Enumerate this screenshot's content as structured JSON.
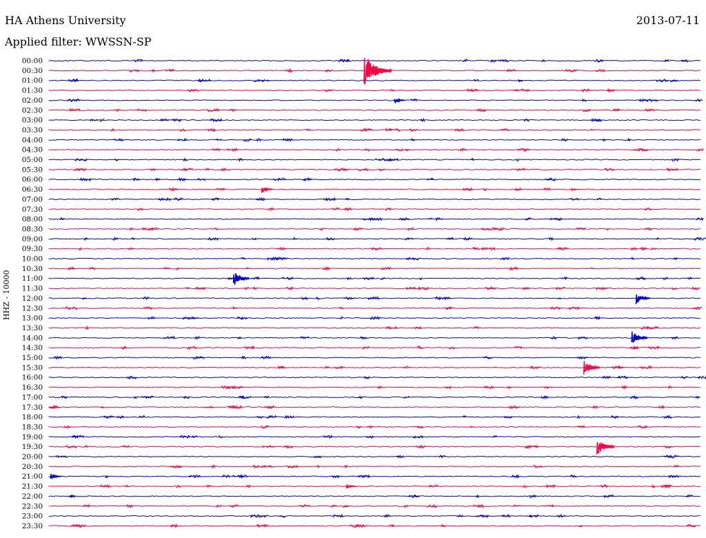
{
  "header": {
    "title": "HA Athens University",
    "filter": "Applied filter: WWSSN-SP",
    "date": "2013-07-11"
  },
  "colors": {
    "even_row": "#0000cc",
    "odd_row": "#ff0044"
  },
  "chart_data": {
    "type": "line",
    "ylabel": "HHZ - 10000",
    "rows": [
      "00:00",
      "00:30",
      "01:00",
      "01:30",
      "02:00",
      "02:30",
      "03:00",
      "03:30",
      "04:00",
      "04:30",
      "05:00",
      "05:30",
      "06:00",
      "06:30",
      "07:00",
      "07:30",
      "08:00",
      "08:30",
      "09:00",
      "09:30",
      "10:00",
      "10:30",
      "11:00",
      "11:30",
      "12:00",
      "12:30",
      "13:00",
      "13:30",
      "14:00",
      "14:30",
      "15:00",
      "15:30",
      "16:00",
      "16:30",
      "17:00",
      "17:30",
      "18:00",
      "18:30",
      "19:00",
      "19:30",
      "20:00",
      "20:30",
      "21:00",
      "21:30",
      "22:00",
      "22:30",
      "23:00",
      "23:30"
    ],
    "series_style": "alternating blue / red helicorder traces, 30 minutes per row",
    "events": [
      {
        "row": "00:30",
        "minute": 14.6,
        "amplitude": 1.0
      },
      {
        "row": "02:00",
        "minute": 16.0,
        "amplitude": 0.18
      },
      {
        "row": "06:30",
        "minute": 9.9,
        "amplitude": 0.2
      },
      {
        "row": "11:00",
        "minute": 8.6,
        "amplitude": 0.45
      },
      {
        "row": "12:00",
        "minute": 27.1,
        "amplitude": 0.35
      },
      {
        "row": "14:00",
        "minute": 26.9,
        "amplitude": 0.45
      },
      {
        "row": "15:30",
        "minute": 24.7,
        "amplitude": 0.45
      },
      {
        "row": "19:30",
        "minute": 25.3,
        "amplitude": 0.55
      },
      {
        "row": "21:00",
        "minute": 0.2,
        "amplitude": 0.18
      },
      {
        "row": "21:30",
        "minute": 13.8,
        "amplitude": 0.12
      }
    ]
  }
}
